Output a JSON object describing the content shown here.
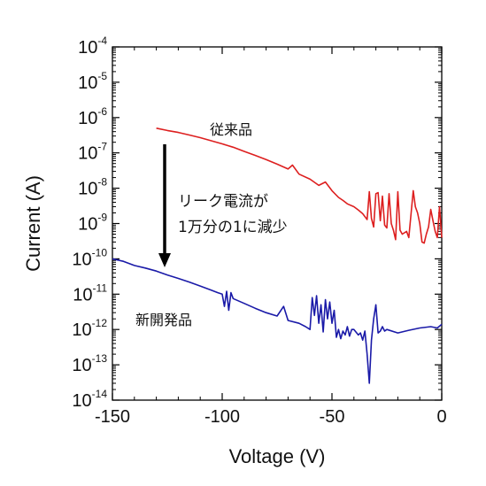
{
  "chart_data": {
    "type": "line",
    "title": "",
    "xlabel": "Voltage (V)",
    "ylabel": "Current (A)",
    "xlim": [
      -150,
      0
    ],
    "ylim_log10": [
      -14,
      -4
    ],
    "yscale": "log",
    "grid": false,
    "x_ticks": [
      "-150",
      "-100",
      "-50",
      "0"
    ],
    "y_ticks": [
      {
        "base": "10",
        "exp": "-4"
      },
      {
        "base": "10",
        "exp": "-5"
      },
      {
        "base": "10",
        "exp": "-6"
      },
      {
        "base": "10",
        "exp": "-7"
      },
      {
        "base": "10",
        "exp": "-8"
      },
      {
        "base": "10",
        "exp": "-9"
      },
      {
        "base": "10",
        "exp": "-10"
      },
      {
        "base": "10",
        "exp": "-11"
      },
      {
        "base": "10",
        "exp": "-12"
      },
      {
        "base": "10",
        "exp": "-13"
      },
      {
        "base": "10",
        "exp": "-14"
      }
    ],
    "series": [
      {
        "name": "従来品",
        "color": "#dd1f1f",
        "points": [
          [
            -130,
            5e-07
          ],
          [
            -125,
            4.3e-07
          ],
          [
            -120,
            3.8e-07
          ],
          [
            -115,
            3.2e-07
          ],
          [
            -110,
            2.7e-07
          ],
          [
            -105,
            2.2e-07
          ],
          [
            -100,
            1.8e-07
          ],
          [
            -95,
            1.45e-07
          ],
          [
            -90,
            1.1e-07
          ],
          [
            -85,
            8.5e-08
          ],
          [
            -80,
            6.5e-08
          ],
          [
            -75,
            4.8e-08
          ],
          [
            -70,
            3.5e-08
          ],
          [
            -68,
            4.5e-08
          ],
          [
            -65,
            2.5e-08
          ],
          [
            -60,
            1.8e-08
          ],
          [
            -56,
            1.2e-08
          ],
          [
            -53,
            1.5e-08
          ],
          [
            -50,
            8.5e-09
          ],
          [
            -47,
            5.5e-09
          ],
          [
            -45,
            4.5e-09
          ],
          [
            -43,
            3.6e-09
          ],
          [
            -40,
            3e-09
          ],
          [
            -38,
            2.4e-09
          ],
          [
            -36,
            1.9e-09
          ],
          [
            -34,
            1.3e-09
          ],
          [
            -33,
            8e-09
          ],
          [
            -32,
            1.4e-09
          ],
          [
            -31,
            8e-10
          ],
          [
            -30,
            7e-09
          ],
          [
            -29,
            7.5e-09
          ],
          [
            -28,
            1.2e-09
          ],
          [
            -27,
            6e-09
          ],
          [
            -26,
            9e-10
          ],
          [
            -25,
            7.5e-10
          ],
          [
            -24,
            7e-09
          ],
          [
            -23,
            1e-09
          ],
          [
            -22,
            6.5e-10
          ],
          [
            -21,
            3.5e-10
          ],
          [
            -20,
            8e-09
          ],
          [
            -19,
            6.5e-10
          ],
          [
            -18,
            5e-10
          ],
          [
            -16,
            6e-10
          ],
          [
            -15,
            4e-10
          ],
          [
            -13,
            8.5e-09
          ],
          [
            -12,
            3e-09
          ],
          [
            -11,
            2e-09
          ],
          [
            -10,
            1e-09
          ],
          [
            -9,
            3e-10
          ],
          [
            -8,
            2.8e-10
          ],
          [
            -7,
            5e-10
          ],
          [
            -6,
            8e-10
          ],
          [
            -5,
            2.5e-09
          ],
          [
            -4,
            1.2e-09
          ],
          [
            -3,
            6e-10
          ],
          [
            -2,
            4e-10
          ],
          [
            -1,
            3e-09
          ],
          [
            0,
            4e-10
          ]
        ]
      },
      {
        "name": "新開発品",
        "color": "#1a1aa8",
        "points": [
          [
            -150,
            1e-10
          ],
          [
            -145,
            8.5e-11
          ],
          [
            -140,
            6.5e-11
          ],
          [
            -135,
            5.5e-11
          ],
          [
            -130,
            4.5e-11
          ],
          [
            -125,
            3.5e-11
          ],
          [
            -120,
            2.8e-11
          ],
          [
            -115,
            2.2e-11
          ],
          [
            -110,
            1.7e-11
          ],
          [
            -105,
            1.3e-11
          ],
          [
            -102,
            1.1e-11
          ],
          [
            -100,
            1e-11
          ],
          [
            -99,
            4.5e-12
          ],
          [
            -98,
            1.2e-11
          ],
          [
            -97,
            3.5e-12
          ],
          [
            -96,
            1.1e-11
          ],
          [
            -95,
            7.5e-12
          ],
          [
            -90,
            5.5e-12
          ],
          [
            -85,
            4e-12
          ],
          [
            -80,
            3e-12
          ],
          [
            -75,
            2.4e-12
          ],
          [
            -72,
            4.5e-12
          ],
          [
            -70,
            1.8e-12
          ],
          [
            -65,
            1.5e-12
          ],
          [
            -62,
            1.2e-12
          ],
          [
            -60,
            1e-12
          ],
          [
            -59,
            8e-12
          ],
          [
            -58,
            2.5e-12
          ],
          [
            -57,
            9e-12
          ],
          [
            -56,
            1.5e-12
          ],
          [
            -55,
            5e-12
          ],
          [
            -54,
            8.5e-13
          ],
          [
            -53,
            7e-12
          ],
          [
            -52,
            2e-12
          ],
          [
            -51,
            6e-12
          ],
          [
            -50,
            1.5e-12
          ],
          [
            -49,
            3.5e-12
          ],
          [
            -48,
            6e-13
          ],
          [
            -47,
            1e-12
          ],
          [
            -46,
            5.5e-13
          ],
          [
            -45,
            9e-13
          ],
          [
            -44,
            7e-13
          ],
          [
            -43,
            1.2e-12
          ],
          [
            -42,
            6.5e-13
          ],
          [
            -41,
            1e-12
          ],
          [
            -40,
            1e-12
          ],
          [
            -38,
            7e-13
          ],
          [
            -37,
            8e-13
          ],
          [
            -36,
            5e-13
          ],
          [
            -35,
            9e-13
          ],
          [
            -34,
            2e-13
          ],
          [
            -33,
            3e-14
          ],
          [
            -32,
            5e-13
          ],
          [
            -31,
            2e-12
          ],
          [
            -30,
            5e-12
          ],
          [
            -29,
            8e-13
          ],
          [
            -28,
            9e-13
          ],
          [
            -27,
            1.2e-12
          ],
          [
            -26,
            9e-13
          ],
          [
            -25,
            1e-12
          ],
          [
            -20,
            8e-13
          ],
          [
            -15,
            9.5e-13
          ],
          [
            -10,
            1.1e-12
          ],
          [
            -5,
            1.2e-12
          ],
          [
            -2,
            1.1e-12
          ],
          [
            0,
            1.4e-12
          ]
        ]
      }
    ],
    "annotations": {
      "label_conventional": "従来品",
      "label_new": "新開発品",
      "arrow_text_line1": "リーク電流が",
      "arrow_text_line2": "1万分の1に減少"
    }
  }
}
